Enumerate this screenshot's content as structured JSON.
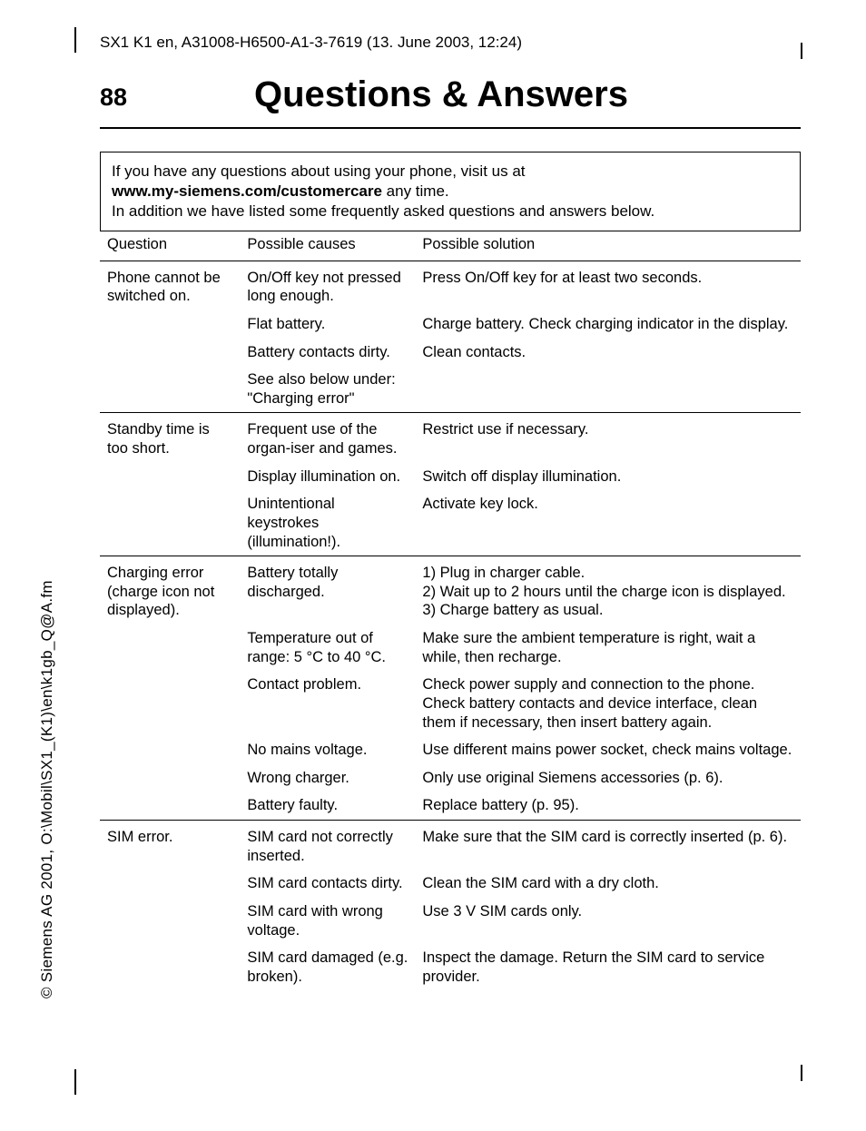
{
  "meta": {
    "header_line": "SX1 K1 en, A31008-H6500-A1-3-7619 (13. June 2003, 12:24)",
    "side_text": "© Siemens AG 2001, O:\\Mobil\\SX1_(K1)\\en\\k1gb_Q@A.fm",
    "page_number": "88",
    "title": "Questions & Answers"
  },
  "intro": {
    "line1": "If you have any questions about using your phone, visit us at",
    "bold": "www.my-siemens.com/customercare",
    "after_bold": " any time.",
    "line2": "In addition we have listed some frequently asked questions and answers below."
  },
  "table": {
    "headers": {
      "q": "Question",
      "c": "Possible causes",
      "s": "Possible solution"
    },
    "groups": [
      {
        "question": "Phone cannot be switched on.",
        "rows": [
          {
            "cause": "On/Off key not pressed long enough.",
            "solution": "Press On/Off key for at least two seconds."
          },
          {
            "cause": "Flat battery.",
            "solution": "Charge battery. Check charging indicator in the display."
          },
          {
            "cause": "Battery contacts dirty.",
            "solution": "Clean contacts."
          },
          {
            "cause": "See also below under: \"Charging error\"",
            "solution": ""
          }
        ]
      },
      {
        "question": "Standby time is too short.",
        "rows": [
          {
            "cause": "Frequent use of the organ-iser and games.",
            "solution": "Restrict use if necessary."
          },
          {
            "cause": "Display illumination on.",
            "solution": "Switch off display illumination."
          },
          {
            "cause": "Unintentional keystrokes (illumination!).",
            "solution": "Activate key lock."
          }
        ]
      },
      {
        "question": "Charging error (charge icon not displayed).",
        "rows": [
          {
            "cause": "Battery totally discharged.",
            "solution": "1) Plug in charger cable.\n2) Wait up to 2 hours until the charge icon is displayed.\n3) Charge battery as usual."
          },
          {
            "cause": "Temperature out of range: 5 °C to 40 °C.",
            "solution": "Make sure the ambient temperature is right, wait a while, then recharge."
          },
          {
            "cause": "Contact problem.",
            "solution": "Check power supply and connection to the phone. Check battery contacts and device interface, clean them if necessary, then insert battery again."
          },
          {
            "cause": "No mains voltage.",
            "solution": "Use different mains power socket, check mains voltage."
          },
          {
            "cause": "Wrong charger.",
            "solution": "Only use original Siemens accessories (p. 6)."
          },
          {
            "cause": "Battery faulty.",
            "solution": "Replace battery (p. 95)."
          }
        ]
      },
      {
        "question": "SIM error.",
        "rows": [
          {
            "cause": "SIM card not correctly inserted.",
            "solution": "Make sure that the SIM card is correctly inserted (p. 6)."
          },
          {
            "cause": "SIM card contacts dirty.",
            "solution": "Clean the SIM card with a dry cloth."
          },
          {
            "cause": "SIM card with wrong voltage.",
            "solution": "Use 3 V SIM cards only."
          },
          {
            "cause": "SIM card damaged (e.g. broken).",
            "solution": "Inspect the damage. Return the SIM card to service provider."
          }
        ]
      }
    ]
  },
  "style": {
    "font_family": "Arial, Helvetica, sans-serif",
    "body_fontsize": 17,
    "title_fontsize": 40,
    "pagenum_fontsize": 27,
    "text_color": "#000000",
    "background_color": "#ffffff",
    "border_color": "#000000"
  }
}
